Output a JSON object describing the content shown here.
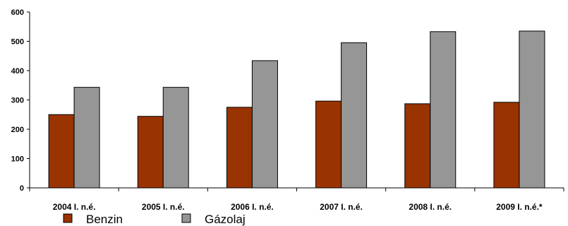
{
  "chart_data": {
    "type": "bar",
    "categories": [
      "2004 I. n.é.",
      "2005 I. n.é.",
      "2006 I. n.é.",
      "2007 I. n.é.",
      "2008 I. n.é.",
      "2009 I. n.é.*"
    ],
    "series": [
      {
        "name": "Benzin",
        "values": [
          250,
          244,
          275,
          296,
          287,
          292
        ],
        "color": "#993300"
      },
      {
        "name": "Gázolaj",
        "values": [
          343,
          343,
          434,
          495,
          533,
          535
        ],
        "color": "#969696"
      }
    ],
    "ylim": [
      0,
      600
    ],
    "yticks": [
      "0",
      "100",
      "200",
      "300",
      "400",
      "500",
      "600"
    ],
    "grid": false,
    "legend_position": "bottom-left"
  }
}
